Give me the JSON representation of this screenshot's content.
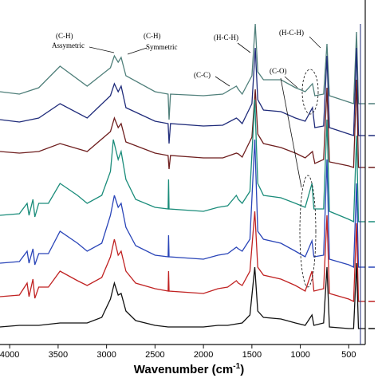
{
  "chart_data": {
    "type": "line",
    "title": "",
    "xlabel": "Wavenumber (cm",
    "xlabel_sup": "-1",
    "xlabel_close": ")",
    "ylabel": "",
    "x_reversed": true,
    "xlim": [
      4100,
      330
    ],
    "xticks": [
      4000,
      3500,
      3000,
      2500,
      2000,
      1500,
      1000,
      500
    ],
    "xtick_labels": [
      "4000",
      "3500",
      "3000",
      "2500",
      "2000",
      "1500",
      "1000",
      "500"
    ],
    "grid": false,
    "legend": "none",
    "series": [
      {
        "color": "#4f7f7a",
        "points": [
          [
            4100,
            115
          ],
          [
            3900,
            118
          ],
          [
            3700,
            110
          ],
          [
            3480,
            83
          ],
          [
            3200,
            108
          ],
          [
            2960,
            85
          ],
          [
            2920,
            70
          ],
          [
            2880,
            78
          ],
          [
            2850,
            72
          ],
          [
            2800,
            95
          ],
          [
            2500,
            115
          ],
          [
            2365,
            118
          ],
          [
            2355,
            150
          ],
          [
            2340,
            118
          ],
          [
            2000,
            120
          ],
          [
            1800,
            118
          ],
          [
            1660,
            108
          ],
          [
            1640,
            112
          ],
          [
            1600,
            118
          ],
          [
            1500,
            95
          ],
          [
            1465,
            30
          ],
          [
            1440,
            90
          ],
          [
            1380,
            100
          ],
          [
            1200,
            100
          ],
          [
            1050,
            110
          ],
          [
            950,
            115
          ],
          [
            875,
            105
          ],
          [
            850,
            120
          ],
          [
            760,
            118
          ],
          [
            725,
            55
          ],
          [
            700,
            120
          ],
          [
            500,
            128
          ],
          [
            450,
            130
          ],
          [
            420,
            40
          ],
          [
            400,
            130
          ],
          [
            330,
            130
          ]
        ]
      },
      {
        "color": "#1f2b7a",
        "points": [
          [
            4100,
            150
          ],
          [
            3900,
            153
          ],
          [
            3700,
            148
          ],
          [
            3480,
            130
          ],
          [
            3200,
            148
          ],
          [
            2960,
            120
          ],
          [
            2920,
            105
          ],
          [
            2880,
            115
          ],
          [
            2850,
            108
          ],
          [
            2800,
            135
          ],
          [
            2500,
            152
          ],
          [
            2365,
            155
          ],
          [
            2355,
            180
          ],
          [
            2340,
            155
          ],
          [
            2000,
            158
          ],
          [
            1800,
            157
          ],
          [
            1660,
            148
          ],
          [
            1640,
            150
          ],
          [
            1600,
            155
          ],
          [
            1500,
            130
          ],
          [
            1465,
            60
          ],
          [
            1440,
            125
          ],
          [
            1380,
            138
          ],
          [
            1200,
            140
          ],
          [
            1050,
            148
          ],
          [
            950,
            152
          ],
          [
            875,
            135
          ],
          [
            850,
            160
          ],
          [
            760,
            158
          ],
          [
            725,
            70
          ],
          [
            700,
            160
          ],
          [
            500,
            168
          ],
          [
            450,
            170
          ],
          [
            420,
            60
          ],
          [
            400,
            170
          ],
          [
            330,
            170
          ]
        ]
      },
      {
        "color": "#6e1e1e",
        "points": [
          [
            4100,
            190
          ],
          [
            3900,
            192
          ],
          [
            3700,
            190
          ],
          [
            3480,
            180
          ],
          [
            3200,
            190
          ],
          [
            2960,
            165
          ],
          [
            2920,
            148
          ],
          [
            2880,
            160
          ],
          [
            2850,
            155
          ],
          [
            2800,
            178
          ],
          [
            2500,
            192
          ],
          [
            2365,
            195
          ],
          [
            2355,
            212
          ],
          [
            2340,
            195
          ],
          [
            2000,
            198
          ],
          [
            1800,
            198
          ],
          [
            1660,
            192
          ],
          [
            1640,
            193
          ],
          [
            1600,
            197
          ],
          [
            1500,
            172
          ],
          [
            1465,
            112
          ],
          [
            1440,
            168
          ],
          [
            1380,
            180
          ],
          [
            1200,
            185
          ],
          [
            1050,
            192
          ],
          [
            950,
            198
          ],
          [
            875,
            190
          ],
          [
            850,
            205
          ],
          [
            760,
            200
          ],
          [
            725,
            110
          ],
          [
            700,
            203
          ],
          [
            500,
            208
          ],
          [
            450,
            210
          ],
          [
            420,
            100
          ],
          [
            400,
            210
          ],
          [
            330,
            210
          ]
        ]
      },
      {
        "color": "#1a8c7a",
        "points": [
          [
            4100,
            270
          ],
          [
            3900,
            268
          ],
          [
            3820,
            255
          ],
          [
            3800,
            270
          ],
          [
            3760,
            250
          ],
          [
            3740,
            272
          ],
          [
            3700,
            255
          ],
          [
            3600,
            255
          ],
          [
            3480,
            230
          ],
          [
            3300,
            245
          ],
          [
            3200,
            255
          ],
          [
            3050,
            245
          ],
          [
            2960,
            215
          ],
          [
            2930,
            175
          ],
          [
            2880,
            200
          ],
          [
            2850,
            190
          ],
          [
            2800,
            225
          ],
          [
            2700,
            250
          ],
          [
            2500,
            260
          ],
          [
            2365,
            262
          ],
          [
            2360,
            225
          ],
          [
            2355,
            262
          ],
          [
            2000,
            265
          ],
          [
            1850,
            260
          ],
          [
            1750,
            258
          ],
          [
            1660,
            245
          ],
          [
            1640,
            250
          ],
          [
            1600,
            255
          ],
          [
            1520,
            240
          ],
          [
            1470,
            125
          ],
          [
            1440,
            230
          ],
          [
            1380,
            245
          ],
          [
            1200,
            248
          ],
          [
            1050,
            255
          ],
          [
            950,
            260
          ],
          [
            880,
            230
          ],
          [
            860,
            262
          ],
          [
            760,
            262
          ],
          [
            725,
            150
          ],
          [
            700,
            265
          ],
          [
            500,
            275
          ],
          [
            450,
            278
          ],
          [
            420,
            170
          ],
          [
            400,
            278
          ],
          [
            330,
            278
          ]
        ]
      },
      {
        "color": "#2a45b8",
        "points": [
          [
            4100,
            330
          ],
          [
            3900,
            328
          ],
          [
            3820,
            315
          ],
          [
            3800,
            330
          ],
          [
            3760,
            312
          ],
          [
            3740,
            332
          ],
          [
            3700,
            318
          ],
          [
            3600,
            318
          ],
          [
            3480,
            290
          ],
          [
            3300,
            305
          ],
          [
            3200,
            315
          ],
          [
            3050,
            305
          ],
          [
            2960,
            270
          ],
          [
            2920,
            245
          ],
          [
            2880,
            260
          ],
          [
            2850,
            255
          ],
          [
            2800,
            285
          ],
          [
            2700,
            308
          ],
          [
            2500,
            320
          ],
          [
            2365,
            322
          ],
          [
            2360,
            295
          ],
          [
            2355,
            322
          ],
          [
            2000,
            325
          ],
          [
            1850,
            320
          ],
          [
            1750,
            318
          ],
          [
            1660,
            310
          ],
          [
            1640,
            312
          ],
          [
            1600,
            315
          ],
          [
            1520,
            300
          ],
          [
            1470,
            175
          ],
          [
            1440,
            290
          ],
          [
            1380,
            300
          ],
          [
            1200,
            305
          ],
          [
            1050,
            315
          ],
          [
            950,
            322
          ],
          [
            880,
            302
          ],
          [
            860,
            322
          ],
          [
            760,
            320
          ],
          [
            725,
            200
          ],
          [
            700,
            325
          ],
          [
            500,
            332
          ],
          [
            450,
            335
          ],
          [
            420,
            230
          ],
          [
            400,
            335
          ],
          [
            330,
            335
          ]
        ]
      },
      {
        "color": "#c02222",
        "points": [
          [
            4100,
            372
          ],
          [
            3900,
            370
          ],
          [
            3820,
            355
          ],
          [
            3800,
            372
          ],
          [
            3760,
            350
          ],
          [
            3740,
            374
          ],
          [
            3700,
            360
          ],
          [
            3600,
            360
          ],
          [
            3480,
            340
          ],
          [
            3300,
            352
          ],
          [
            3200,
            358
          ],
          [
            3050,
            348
          ],
          [
            2960,
            322
          ],
          [
            2920,
            300
          ],
          [
            2880,
            320
          ],
          [
            2850,
            315
          ],
          [
            2800,
            340
          ],
          [
            2700,
            355
          ],
          [
            2500,
            362
          ],
          [
            2365,
            365
          ],
          [
            2360,
            340
          ],
          [
            2355,
            365
          ],
          [
            2000,
            368
          ],
          [
            1850,
            362
          ],
          [
            1750,
            360
          ],
          [
            1660,
            352
          ],
          [
            1640,
            355
          ],
          [
            1600,
            358
          ],
          [
            1520,
            340
          ],
          [
            1470,
            265
          ],
          [
            1440,
            335
          ],
          [
            1380,
            345
          ],
          [
            1200,
            350
          ],
          [
            1050,
            358
          ],
          [
            950,
            365
          ],
          [
            880,
            340
          ],
          [
            860,
            365
          ],
          [
            760,
            362
          ],
          [
            725,
            270
          ],
          [
            700,
            368
          ],
          [
            500,
            375
          ],
          [
            450,
            378
          ],
          [
            420,
            280
          ],
          [
            400,
            378
          ],
          [
            330,
            378
          ]
        ]
      },
      {
        "color": "#111111",
        "points": [
          [
            4100,
            410
          ],
          [
            3900,
            408
          ],
          [
            3700,
            408
          ],
          [
            3480,
            405
          ],
          [
            3200,
            405
          ],
          [
            3050,
            398
          ],
          [
            2960,
            375
          ],
          [
            2920,
            355
          ],
          [
            2880,
            370
          ],
          [
            2850,
            368
          ],
          [
            2800,
            390
          ],
          [
            2700,
            402
          ],
          [
            2500,
            408
          ],
          [
            2365,
            410
          ],
          [
            2000,
            410
          ],
          [
            1850,
            408
          ],
          [
            1750,
            408
          ],
          [
            1600,
            405
          ],
          [
            1520,
            395
          ],
          [
            1470,
            335
          ],
          [
            1440,
            390
          ],
          [
            1380,
            398
          ],
          [
            1200,
            400
          ],
          [
            1050,
            405
          ],
          [
            950,
            408
          ],
          [
            880,
            395
          ],
          [
            860,
            408
          ],
          [
            760,
            405
          ],
          [
            725,
            335
          ],
          [
            700,
            410
          ],
          [
            500,
            412
          ],
          [
            450,
            412
          ],
          [
            420,
            330
          ],
          [
            400,
            412
          ],
          [
            330,
            412
          ]
        ]
      }
    ],
    "annotations": [
      {
        "text": "(C-H)",
        "id": "ch1"
      },
      {
        "text": "Assymetric",
        "id": "assym"
      },
      {
        "text": "(C-H)",
        "id": "ch2"
      },
      {
        "text": "Symmetric",
        "id": "sym"
      },
      {
        "text": "(H-C-H)",
        "id": "hch1"
      },
      {
        "text": "(H-C-H)",
        "id": "hch2"
      },
      {
        "text": "(C-C)",
        "id": "cc"
      },
      {
        "text": "(C-O)",
        "id": "co"
      }
    ]
  }
}
